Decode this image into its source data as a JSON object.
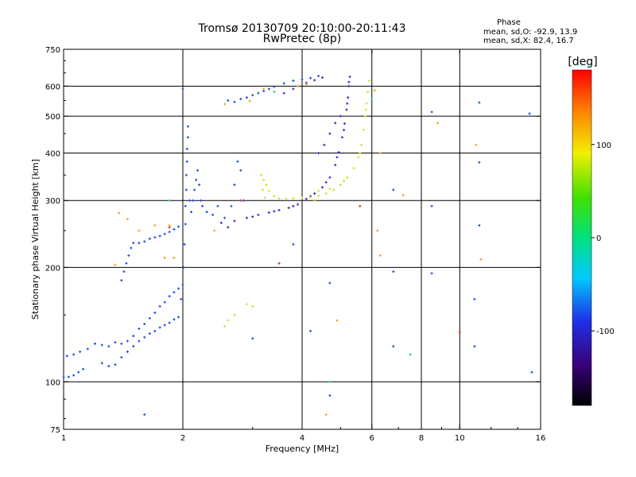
{
  "header": {
    "title_line1": "Tromsø 20130709 20:10:00-20:11:43",
    "title_line2": "RwPretec (8p)",
    "phase_title": "Phase",
    "phase_line_o": "mean, sd,O: -92.9, 13.9",
    "phase_line_x": "mean, sd,X:  82.4, 16.7"
  },
  "chart_data": {
    "type": "scatter",
    "title": "Tromsø 20130709 20:10:00-20:11:43",
    "subtitle": "RwPretec (8p)",
    "xlabel": "Frequency [MHz]",
    "ylabel": "Stationary phase Virtual Height [km]",
    "x_scale": "log",
    "y_scale": "log",
    "xlim": [
      1,
      16
    ],
    "ylim": [
      75,
      750
    ],
    "x_ticks": [
      1,
      2,
      4,
      6,
      8,
      10,
      16
    ],
    "x_tick_labels": [
      "1",
      "2",
      "4",
      "6",
      "8",
      "10",
      "16"
    ],
    "y_ticks": [
      75,
      100,
      200,
      300,
      400,
      500,
      600,
      750
    ],
    "y_tick_labels": [
      "75",
      "100",
      "200",
      "300",
      "400",
      "500",
      "600",
      "750"
    ],
    "x_gridlines": [
      2,
      4,
      6,
      8,
      10
    ],
    "y_gridlines": [
      100,
      200,
      300,
      400,
      500,
      600
    ],
    "colorbar": {
      "label": "[deg]",
      "range": [
        -180,
        180
      ],
      "ticks": [
        100,
        0,
        -100
      ],
      "tick_labels": [
        "100",
        "0",
        "-100"
      ]
    },
    "series": [
      {
        "phase": -100,
        "color": "#1e4de6",
        "points": [
          [
            1.0,
            103
          ],
          [
            1.03,
            103
          ],
          [
            1.06,
            104
          ],
          [
            1.09,
            106
          ],
          [
            1.12,
            108
          ],
          [
            1.02,
            117
          ],
          [
            1.06,
            118
          ],
          [
            1.1,
            120
          ],
          [
            1.15,
            122
          ],
          [
            1.2,
            126
          ],
          [
            1.25,
            125
          ],
          [
            1.3,
            124
          ],
          [
            1.35,
            127
          ],
          [
            1.4,
            126
          ],
          [
            1.45,
            128
          ],
          [
            1.5,
            132
          ],
          [
            1.55,
            138
          ],
          [
            1.6,
            142
          ],
          [
            1.65,
            147
          ],
          [
            1.7,
            152
          ],
          [
            1.75,
            158
          ],
          [
            1.8,
            162
          ],
          [
            1.85,
            168
          ],
          [
            1.9,
            172
          ],
          [
            1.95,
            176
          ],
          [
            1.25,
            112
          ],
          [
            1.3,
            110
          ],
          [
            1.35,
            111
          ],
          [
            1.4,
            116
          ],
          [
            1.45,
            120
          ],
          [
            1.5,
            124
          ],
          [
            1.55,
            128
          ],
          [
            1.6,
            131
          ],
          [
            1.65,
            134
          ],
          [
            1.7,
            136
          ],
          [
            1.75,
            139
          ],
          [
            1.8,
            141
          ],
          [
            1.85,
            143
          ],
          [
            1.9,
            146
          ],
          [
            1.95,
            148
          ],
          [
            1.4,
            185
          ],
          [
            1.42,
            195
          ],
          [
            1.44,
            205
          ],
          [
            1.46,
            215
          ],
          [
            1.48,
            225
          ],
          [
            1.5,
            232
          ],
          [
            1.55,
            232
          ],
          [
            1.6,
            234
          ],
          [
            1.65,
            238
          ],
          [
            1.7,
            240
          ],
          [
            1.75,
            242
          ],
          [
            1.8,
            245
          ],
          [
            1.85,
            248
          ],
          [
            1.9,
            252
          ],
          [
            1.95,
            256
          ],
          [
            1.98,
            165
          ],
          [
            2.0,
            180
          ],
          [
            2.01,
            200
          ],
          [
            2.02,
            230
          ],
          [
            2.03,
            260
          ],
          [
            2.03,
            290
          ],
          [
            2.04,
            320
          ],
          [
            2.04,
            350
          ],
          [
            2.05,
            380
          ],
          [
            2.05,
            410
          ],
          [
            2.06,
            440
          ],
          [
            2.06,
            470
          ],
          [
            2.08,
            300
          ],
          [
            2.1,
            280
          ],
          [
            2.12,
            300
          ],
          [
            2.14,
            320
          ],
          [
            2.16,
            340
          ],
          [
            2.18,
            360
          ],
          [
            2.2,
            330
          ],
          [
            2.22,
            300
          ],
          [
            2.24,
            290
          ],
          [
            2.3,
            280
          ],
          [
            2.38,
            275
          ],
          [
            2.45,
            290
          ],
          [
            2.55,
            270
          ],
          [
            2.65,
            290
          ],
          [
            2.7,
            330
          ],
          [
            2.75,
            380
          ],
          [
            2.8,
            360
          ],
          [
            2.85,
            300
          ],
          [
            2.6,
            550
          ],
          [
            2.7,
            545
          ],
          [
            2.8,
            555
          ],
          [
            2.9,
            560
          ],
          [
            3.0,
            568
          ],
          [
            3.1,
            575
          ],
          [
            3.2,
            582
          ],
          [
            3.3,
            590
          ],
          [
            3.4,
            598
          ],
          [
            3.6,
            610
          ],
          [
            3.8,
            620
          ],
          [
            4.0,
            625
          ],
          [
            4.2,
            630
          ],
          [
            4.4,
            638
          ],
          [
            1.6,
            82
          ],
          [
            3.0,
            130
          ],
          [
            4.2,
            136
          ],
          [
            4.7,
            92
          ],
          [
            6.8,
            320
          ],
          [
            6.8,
            195
          ],
          [
            6.8,
            124
          ],
          [
            8.5,
            513
          ],
          [
            8.5,
            290
          ],
          [
            8.5,
            193
          ],
          [
            11.2,
            543
          ],
          [
            11.2,
            378
          ],
          [
            11.2,
            258
          ],
          [
            10.9,
            165
          ],
          [
            10.9,
            124
          ],
          [
            15.0,
            508
          ],
          [
            15.2,
            106
          ],
          [
            2.0,
            590
          ],
          [
            3.8,
            230
          ],
          [
            4.7,
            182
          ]
        ]
      },
      {
        "phase": -120,
        "color": "#4a1fd0",
        "points": [
          [
            2.5,
            262
          ],
          [
            2.7,
            265
          ],
          [
            2.9,
            270
          ],
          [
            3.1,
            275
          ],
          [
            3.3,
            279
          ],
          [
            3.5,
            283
          ],
          [
            3.7,
            287
          ],
          [
            3.9,
            293
          ],
          [
            4.1,
            303
          ],
          [
            4.3,
            313
          ],
          [
            4.5,
            325
          ],
          [
            4.7,
            345
          ],
          [
            4.85,
            372
          ],
          [
            4.95,
            402
          ],
          [
            5.05,
            440
          ],
          [
            5.12,
            478
          ],
          [
            5.18,
            520
          ],
          [
            5.22,
            560
          ],
          [
            5.25,
            600
          ],
          [
            5.28,
            635
          ],
          [
            2.6,
            255
          ],
          [
            3.0,
            272
          ],
          [
            3.4,
            281
          ],
          [
            3.8,
            290
          ],
          [
            4.2,
            308
          ],
          [
            4.6,
            335
          ],
          [
            4.9,
            390
          ],
          [
            5.1,
            460
          ],
          [
            5.2,
            540
          ],
          [
            5.25,
            615
          ],
          [
            4.4,
            400
          ],
          [
            4.55,
            420
          ],
          [
            4.7,
            450
          ],
          [
            4.85,
            480
          ],
          [
            5.0,
            500
          ],
          [
            3.6,
            575
          ],
          [
            3.8,
            590
          ],
          [
            4.1,
            612
          ],
          [
            4.3,
            622
          ],
          [
            4.5,
            632
          ]
        ]
      },
      {
        "phase": 100,
        "color": "#c8e62a",
        "points": [
          [
            3.2,
            340
          ],
          [
            3.25,
            330
          ],
          [
            3.3,
            318
          ],
          [
            3.4,
            308
          ],
          [
            3.5,
            304
          ],
          [
            3.65,
            303
          ],
          [
            3.8,
            304
          ],
          [
            4.0,
            305
          ],
          [
            4.2,
            306
          ],
          [
            4.4,
            309
          ],
          [
            4.6,
            313
          ],
          [
            4.8,
            320
          ],
          [
            5.0,
            330
          ],
          [
            5.2,
            345
          ],
          [
            5.4,
            365
          ],
          [
            5.55,
            390
          ],
          [
            5.65,
            420
          ],
          [
            5.72,
            460
          ],
          [
            5.78,
            500
          ],
          [
            5.82,
            540
          ],
          [
            5.86,
            580
          ],
          [
            5.9,
            620
          ],
          [
            3.15,
            350
          ],
          [
            3.18,
            320
          ],
          [
            3.22,
            305
          ],
          [
            2.9,
            160
          ],
          [
            3.0,
            158
          ],
          [
            2.7,
            150
          ],
          [
            2.6,
            145
          ],
          [
            2.55,
            140
          ],
          [
            4.4,
            318
          ],
          [
            4.7,
            322
          ],
          [
            5.1,
            338
          ],
          [
            5.6,
            400
          ],
          [
            5.8,
            520
          ]
        ]
      },
      {
        "phase": 140,
        "color": "#f5a020",
        "points": [
          [
            1.38,
            278
          ],
          [
            1.45,
            268
          ],
          [
            1.55,
            250
          ],
          [
            1.7,
            258
          ],
          [
            1.85,
            258
          ],
          [
            1.9,
            212
          ],
          [
            1.8,
            212
          ],
          [
            1.35,
            203
          ],
          [
            2.55,
            538
          ],
          [
            2.95,
            548
          ],
          [
            3.2,
            590
          ],
          [
            3.9,
            600
          ],
          [
            4.1,
            606
          ],
          [
            4.6,
            82
          ],
          [
            6.1,
            585
          ],
          [
            6.3,
            400
          ],
          [
            7.2,
            310
          ],
          [
            8.8,
            480
          ],
          [
            11.0,
            420
          ],
          [
            11.3,
            210
          ],
          [
            6.2,
            250
          ],
          [
            6.3,
            215
          ],
          [
            4.3,
            300
          ],
          [
            4.9,
            145
          ],
          [
            2.4,
            250
          ]
        ]
      },
      {
        "phase": 170,
        "color": "#e62a1e",
        "points": [
          [
            3.5,
            205
          ],
          [
            5.6,
            290
          ],
          [
            10.0,
            135
          ],
          [
            2.8,
            300
          ],
          [
            1.85,
            255
          ]
        ]
      },
      {
        "phase": 30,
        "color": "#2ac89a",
        "points": [
          [
            1.85,
            300
          ],
          [
            3.4,
            580
          ],
          [
            4.7,
            100
          ],
          [
            6.0,
            555
          ],
          [
            7.5,
            118
          ]
        ]
      }
    ]
  }
}
